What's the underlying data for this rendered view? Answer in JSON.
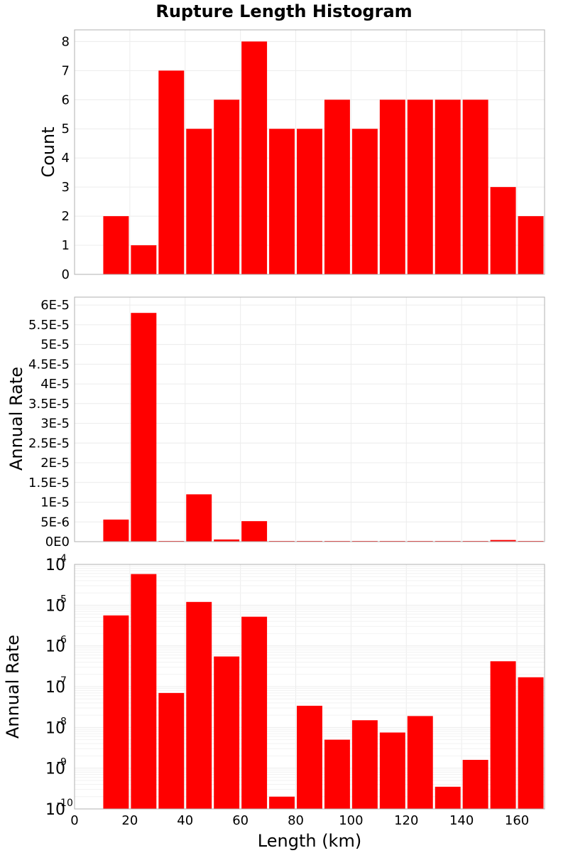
{
  "chart_data": {
    "type": "bar",
    "title": "Rupture Length Histogram",
    "xlabel": "Length (km)",
    "xlim": [
      0,
      170
    ],
    "x_ticks": [
      "0",
      "20",
      "40",
      "60",
      "80",
      "100",
      "120",
      "140",
      "160"
    ],
    "bin_width": 10,
    "colors": {
      "bar": "#ff0000"
    },
    "grid": true,
    "bin_centers": [
      15,
      25,
      35,
      45,
      55,
      65,
      75,
      85,
      95,
      105,
      115,
      125,
      135,
      145,
      155,
      165
    ],
    "panels": [
      {
        "ylabel": "Count",
        "scale": "linear",
        "ylim": [
          0,
          8.4
        ],
        "y_ticks": [
          "0",
          "1",
          "2",
          "3",
          "4",
          "5",
          "6",
          "7",
          "8"
        ],
        "values": [
          2,
          1,
          7,
          5,
          6,
          8,
          5,
          5,
          6,
          5,
          6,
          6,
          6,
          6,
          3,
          2
        ]
      },
      {
        "ylabel": "Annual Rate",
        "scale": "linear",
        "ylim": [
          0,
          6.2e-05
        ],
        "y_ticks": [
          "0E0",
          "5E-6",
          "1E-5",
          "1.5E-5",
          "2E-5",
          "2.5E-5",
          "3E-5",
          "3.5E-5",
          "4E-5",
          "4.5E-5",
          "5E-5",
          "5.5E-5",
          "6E-5"
        ],
        "values": [
          5.6e-06,
          5.8e-05,
          7e-08,
          1.2e-05,
          5.5e-07,
          5.2e-06,
          2e-10,
          3.4e-08,
          5e-09,
          1.5e-08,
          7.5e-09,
          1.9e-08,
          3.5e-10,
          1.6e-09,
          4.2e-07,
          1.7e-07
        ]
      },
      {
        "ylabel": "Annual Rate",
        "scale": "log",
        "ylim": [
          1e-10,
          0.0001
        ],
        "y_ticks": [
          {
            "base": "10",
            "exp": "-10"
          },
          {
            "base": "10",
            "exp": "-9"
          },
          {
            "base": "10",
            "exp": "-8"
          },
          {
            "base": "10",
            "exp": "-7"
          },
          {
            "base": "10",
            "exp": "-6"
          },
          {
            "base": "10",
            "exp": "-5"
          },
          {
            "base": "10",
            "exp": "-4"
          }
        ],
        "values": [
          5.6e-06,
          5.8e-05,
          7e-08,
          1.2e-05,
          5.5e-07,
          5.2e-06,
          2e-10,
          3.4e-08,
          5e-09,
          1.5e-08,
          7.5e-09,
          1.9e-08,
          3.5e-10,
          1.6e-09,
          4.2e-07,
          1.7e-07
        ]
      }
    ]
  }
}
